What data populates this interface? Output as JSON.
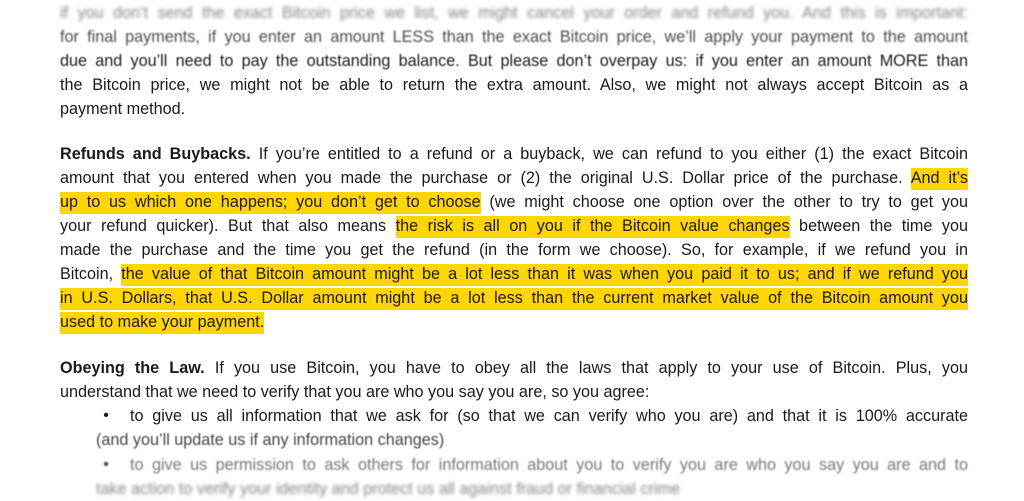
{
  "intro": {
    "lines": [
      "if you don’t send the exact Bitcoin price we list, we might cancel your order and refund you. And this is important:",
      "for final payments, if you enter an amount LESS than the exact Bitcoin price, we’ll apply your payment to the amount",
      "due and you’ll need to pay the outstanding balance. But please don’t overpay us: if you enter an amount MORE than",
      "the Bitcoin price, we might not be able to return the extra amount. Also, we might not always accept Bitcoin as a",
      "payment method."
    ]
  },
  "refunds": {
    "heading": "Refunds and Buybacks.",
    "l1_rest": " If you’re entitled to a refund or a buyback, we can refund to you either (1) the exact Bitcoin",
    "l2_plain": "amount that you entered when you made the purchase or (2) the original U.S. Dollar price of the purchase. ",
    "l2_hl": "And it’s",
    "l3_hl": "up to us which one happens; you don’t get to choose",
    "l3_plain": " (we might choose one option over the other to try to get you",
    "l4_plain": "your refund quicker). But that also means ",
    "l4_hl": "the risk is all on you if the Bitcoin value changes",
    "l4_rest": " between the time you",
    "l5": "made the purchase and the time you get the refund (in the form we choose). So, for example, if we refund you in",
    "l6_plain": "Bitcoin, ",
    "l6_hl": "the value of that Bitcoin amount might be a lot less than it was when you paid it to us; and if we refund you",
    "l7_hl": "in U.S. Dollars, that U.S. Dollar amount might be a lot less than the current market value of the Bitcoin amount you",
    "l8_hl": "used to make your payment."
  },
  "law": {
    "heading": "Obeying the Law.",
    "l1_rest": " If you use Bitcoin, you have to obey all the laws that apply to your use of Bitcoin. Plus, you",
    "l2": "understand that we need to verify that you are who you say you are, so you agree:",
    "bullets": [
      {
        "line1": "to give us all information that we ask for (so that we can verify who you are) and that it is 100% accurate",
        "line2": "(and you’ll update us if any information changes)"
      },
      {
        "line1": "to give us permission to ask others for information about you to verify you are who you say you are and to",
        "line2": "take action to verify your identity and protect us all against fraud or financial crime"
      }
    ],
    "bullet_glyph": "•"
  },
  "colors": {
    "highlight": "#ffd600",
    "text": "#1a1a1a"
  }
}
